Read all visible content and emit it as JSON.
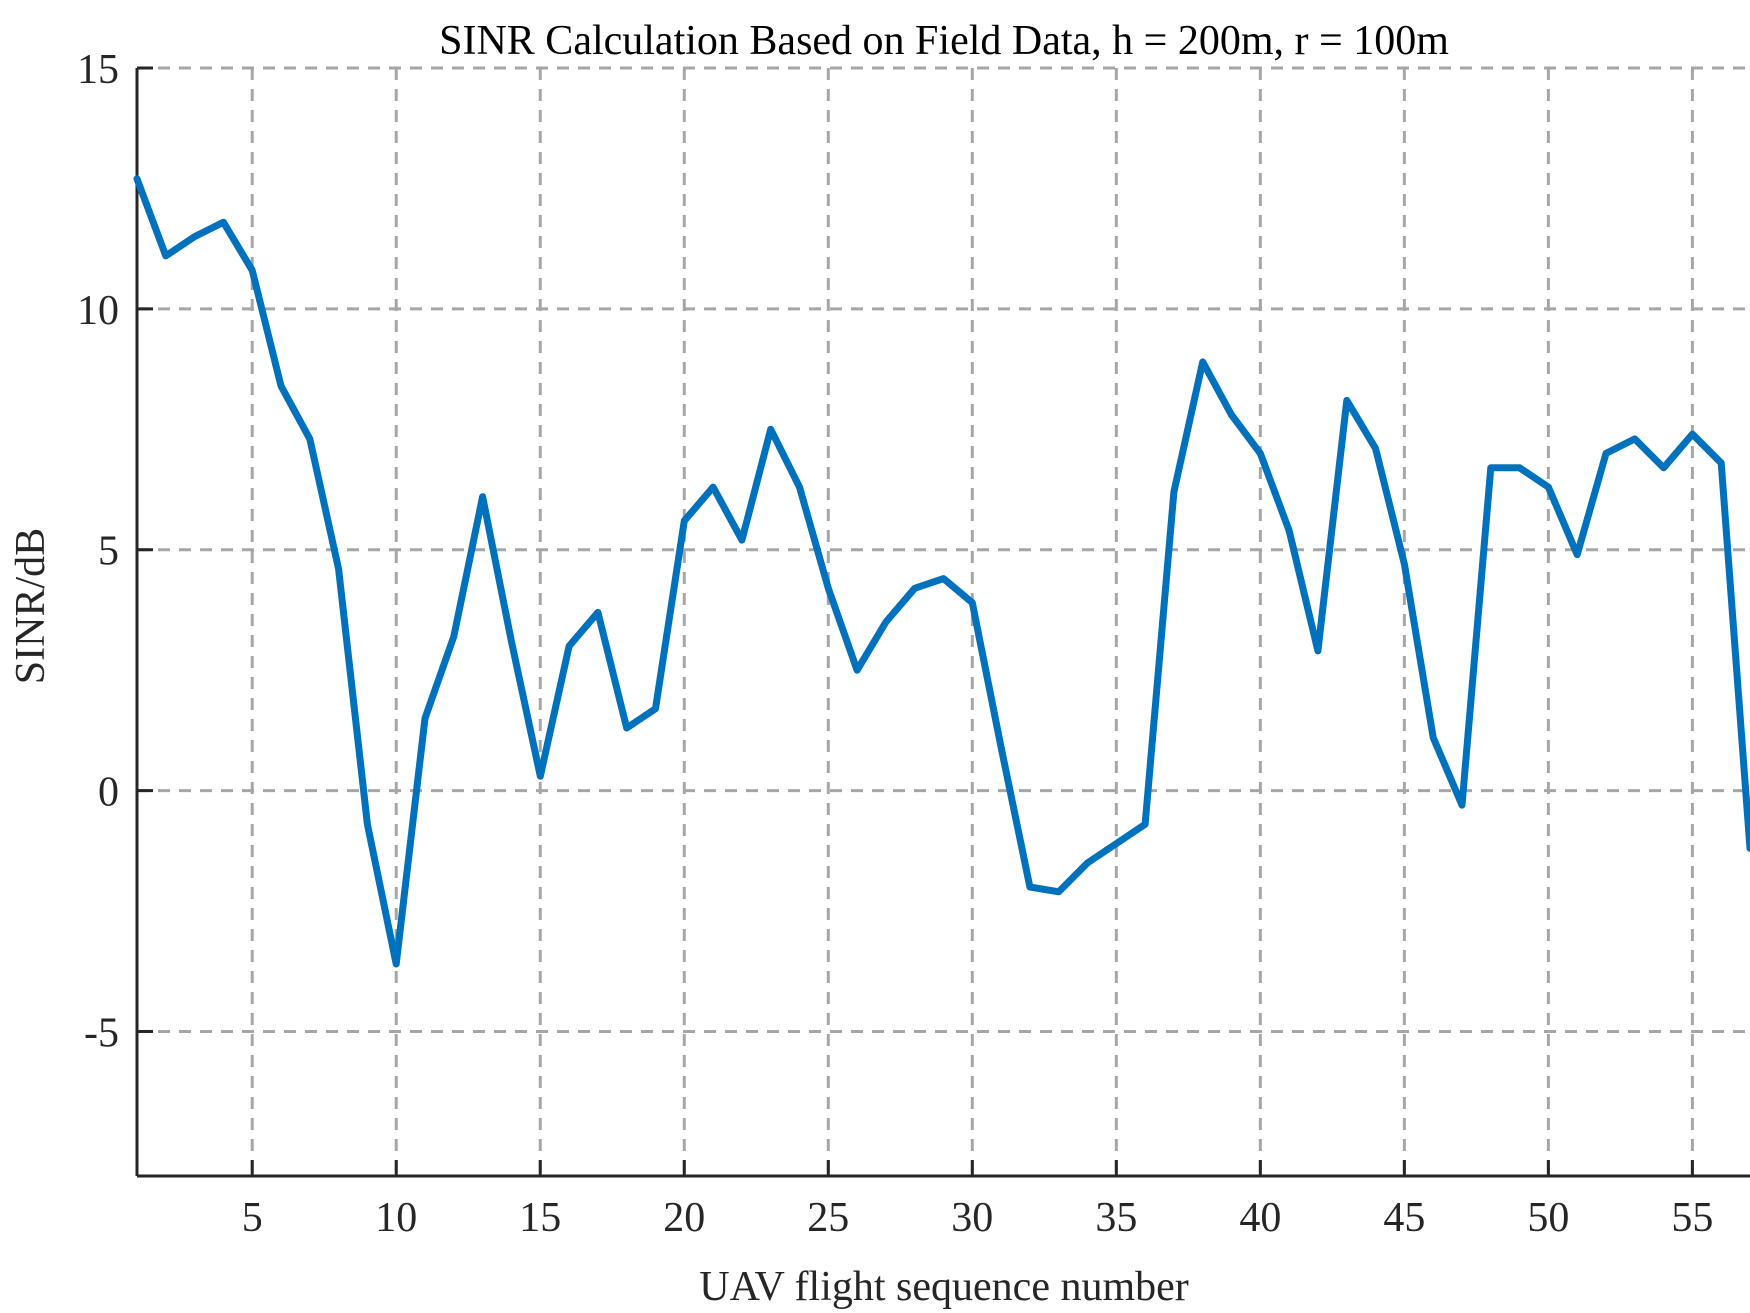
{
  "chart_data": {
    "type": "line",
    "title": "SINR Calculation Based on Field Data, h = 200m, r = 100m",
    "xlabel": "UAV flight sequence number",
    "ylabel": "SINR/dB",
    "xlim": [
      1,
      57
    ],
    "ylim": [
      -8,
      15
    ],
    "xticks": [
      5,
      10,
      15,
      20,
      25,
      30,
      35,
      40,
      45,
      50,
      55
    ],
    "yticks": [
      -5,
      0,
      5,
      10,
      15
    ],
    "grid": true,
    "line_color": "#0072BD",
    "series": [
      {
        "x": [
          1,
          2,
          3,
          4,
          5,
          6,
          7,
          8,
          9,
          10,
          11,
          12,
          13,
          14,
          15,
          16,
          17,
          18,
          19,
          20,
          21,
          22,
          23,
          24,
          25,
          26,
          27,
          28,
          29,
          30,
          31,
          32,
          33,
          34,
          35,
          36,
          37,
          38,
          39,
          40,
          41,
          42,
          43,
          44,
          45,
          46,
          47,
          48,
          49,
          50,
          51,
          52,
          53,
          54,
          55,
          56,
          57
        ],
        "values": [
          12.7,
          11.1,
          11.5,
          11.8,
          10.8,
          8.4,
          7.3,
          4.6,
          -0.7,
          -3.6,
          1.5,
          3.2,
          6.1,
          3.1,
          0.3,
          3.0,
          3.7,
          1.3,
          1.7,
          5.6,
          6.3,
          5.2,
          7.5,
          6.3,
          4.2,
          2.5,
          3.5,
          4.2,
          4.4,
          3.9,
          0.9,
          -2.0,
          -2.1,
          -1.5,
          -1.1,
          -0.7,
          6.2,
          8.9,
          7.8,
          7.0,
          5.4,
          2.9,
          8.1,
          7.1,
          4.7,
          1.1,
          -0.3,
          6.7,
          6.7,
          6.3,
          4.9,
          7.0,
          7.3,
          6.7,
          7.4,
          6.8,
          -1.2
        ]
      }
    ]
  }
}
